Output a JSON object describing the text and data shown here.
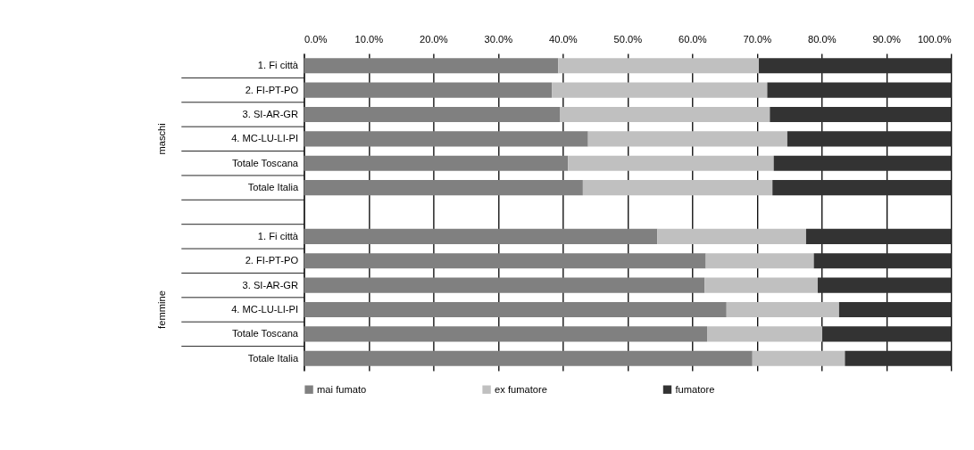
{
  "chart_data": {
    "type": "bar",
    "orientation": "horizontal",
    "stacked": true,
    "categories": [
      "1. Fi città",
      "2. FI-PT-PO",
      "3. SI-AR-GR",
      "4. MC-LU-LI-PI",
      "Totale Toscana",
      "Totale Italia",
      null,
      "1. Fi città",
      "2. FI-PT-PO",
      "3. SI-AR-GR",
      "4. MC-LU-LI-PI",
      "Totale Toscana",
      "Totale Italia"
    ],
    "series": [
      {
        "name": "mai fumato",
        "color": "#808080",
        "values": [
          39.3,
          38.3,
          39.6,
          43.9,
          40.8,
          43.1,
          null,
          54.6,
          62.1,
          61.9,
          65.3,
          62.3,
          69.3
        ]
      },
      {
        "name": "ex fumatore",
        "color": "#c0c0c0",
        "values": [
          31.0,
          33.3,
          32.4,
          30.8,
          31.8,
          29.3,
          null,
          23.0,
          16.7,
          17.5,
          17.4,
          17.8,
          14.3
        ]
      },
      {
        "name": "fumatore",
        "color": "#333333",
        "values": [
          29.7,
          28.4,
          28.0,
          25.3,
          27.4,
          27.6,
          null,
          22.4,
          21.2,
          20.6,
          17.3,
          19.9,
          16.4
        ]
      }
    ],
    "xlim": [
      0,
      100
    ],
    "xticks": [
      {
        "value": 0,
        "label": "0.0%"
      },
      {
        "value": 10,
        "label": "10.0%"
      },
      {
        "value": 20,
        "label": "20.0%"
      },
      {
        "value": 30,
        "label": "30.0%"
      },
      {
        "value": 40,
        "label": "40.0%"
      },
      {
        "value": 50,
        "label": "50.0%"
      },
      {
        "value": 60,
        "label": "60.0%"
      },
      {
        "value": 70,
        "label": "70.0%"
      },
      {
        "value": 80,
        "label": "80.0%"
      },
      {
        "value": 90,
        "label": "90.0%"
      },
      {
        "value": 100,
        "label": "100.0%"
      }
    ],
    "annotations": [
      "maschi",
      "femmine"
    ],
    "grid": "x",
    "legend": "bottom"
  }
}
